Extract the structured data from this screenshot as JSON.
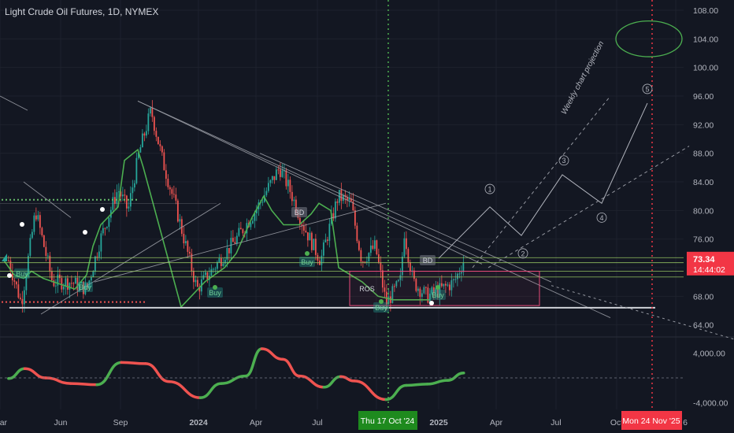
{
  "header": {
    "title": "Light Crude Oil Futures, 1D, NYMEX"
  },
  "colors": {
    "background": "#131722",
    "grid": "#1e222d",
    "text": "#b2b5be",
    "up": "#26a69a",
    "down": "#ef5350",
    "current_price_bg": "#f23645",
    "highlight_date_bg": "#1e8a1e",
    "trendline": "#a0a3ab",
    "support_line": "#cfd2d8",
    "level_lines": "#9ccc65",
    "box": "#e84a7a"
  },
  "chart_data": [
    {
      "type": "candlestick",
      "title": "Light Crude Oil Futures, 1D, NYMEX",
      "price_axis": {
        "ticks": [
          108,
          104,
          100,
          96,
          92,
          88,
          84,
          80,
          76,
          72,
          68,
          64
        ],
        "tick_labels": [
          "108.00",
          "104.00",
          "100.00",
          "96.00",
          "92.00",
          "88.00",
          "84.00",
          "80.00",
          "76.00",
          "72.00",
          "68.00",
          "64.00"
        ],
        "range": [
          61.5,
          110
        ]
      },
      "time_axis": {
        "labels": [
          "Mar",
          "Jun",
          "Sep",
          "2024",
          "Apr",
          "Jul",
          "Oct",
          "2025",
          "Apr",
          "Jul",
          "Oct",
          "6"
        ],
        "highlight_labels": [
          "Thu 17 Oct '24",
          "Mon 24 Nov '25"
        ],
        "grid_on": true
      },
      "current_price": {
        "value": 73.34,
        "label": "73.34",
        "countdown": "14:44:02"
      },
      "price_path": [
        {
          "t": "2023-03-01",
          "p": 73
        },
        {
          "t": "2023-03-20",
          "p": 67
        },
        {
          "t": "2023-04-10",
          "p": 80
        },
        {
          "t": "2023-05-05",
          "p": 70
        },
        {
          "t": "2023-06-01",
          "p": 70
        },
        {
          "t": "2023-06-25",
          "p": 69
        },
        {
          "t": "2023-07-15",
          "p": 76
        },
        {
          "t": "2023-08-10",
          "p": 83
        },
        {
          "t": "2023-08-25",
          "p": 80
        },
        {
          "t": "2023-09-10",
          "p": 88
        },
        {
          "t": "2023-09-28",
          "p": 94
        },
        {
          "t": "2023-10-15",
          "p": 87
        },
        {
          "t": "2023-11-05",
          "p": 80
        },
        {
          "t": "2023-12-05",
          "p": 69
        },
        {
          "t": "2023-12-30",
          "p": 72
        },
        {
          "t": "2024-02-01",
          "p": 76
        },
        {
          "t": "2024-03-01",
          "p": 80
        },
        {
          "t": "2024-04-05",
          "p": 86
        },
        {
          "t": "2024-04-20",
          "p": 83
        },
        {
          "t": "2024-05-10",
          "p": 78
        },
        {
          "t": "2024-06-05",
          "p": 73
        },
        {
          "t": "2024-07-01",
          "p": 82
        },
        {
          "t": "2024-07-20",
          "p": 81
        },
        {
          "t": "2024-08-05",
          "p": 73
        },
        {
          "t": "2024-08-25",
          "p": 75
        },
        {
          "t": "2024-09-10",
          "p": 67
        },
        {
          "t": "2024-10-01",
          "p": 70
        },
        {
          "t": "2024-10-07",
          "p": 77
        },
        {
          "t": "2024-10-20",
          "p": 70
        },
        {
          "t": "2024-11-10",
          "p": 68
        },
        {
          "t": "2024-12-01",
          "p": 69
        },
        {
          "t": "2024-12-20",
          "p": 70
        },
        {
          "t": "2025-01-03",
          "p": 73
        }
      ],
      "horizontal_levels": [
        66.4,
        70.7,
        71.5,
        72.7,
        73.4
      ],
      "elliott_projection": {
        "label": "Weekly chart projection",
        "waves": [
          {
            "label": "1",
            "p": 80.5
          },
          {
            "label": "2",
            "p": 76.5
          },
          {
            "label": "3",
            "p": 85
          },
          {
            "label": "4",
            "p": 81
          },
          {
            "label": "5",
            "p": 95
          }
        ],
        "target_zone": [
          101.5,
          106.5
        ]
      },
      "signals": [
        {
          "label": "Buy"
        },
        {
          "label": "Buy"
        },
        {
          "label": "Buy"
        },
        {
          "label": "Buy"
        },
        {
          "label": "Buy"
        },
        {
          "label": "Buy"
        },
        {
          "label": "BD"
        },
        {
          "label": "BD"
        },
        {
          "label": "ROS"
        }
      ]
    },
    {
      "type": "line",
      "title": "",
      "axis": {
        "ticks": [
          4000,
          -4000
        ],
        "tick_labels": [
          "4,000.00",
          "-4,000.00"
        ]
      },
      "series_path": [
        {
          "t": "2023-03-01",
          "v": -100
        },
        {
          "t": "2023-03-25",
          "v": 1500
        },
        {
          "t": "2023-04-25",
          "v": 0
        },
        {
          "t": "2023-06-01",
          "v": -900
        },
        {
          "t": "2023-07-10",
          "v": -1100
        },
        {
          "t": "2023-08-15",
          "v": 2500
        },
        {
          "t": "2023-09-20",
          "v": 2300
        },
        {
          "t": "2023-10-25",
          "v": -600
        },
        {
          "t": "2023-12-10",
          "v": -3200
        },
        {
          "t": "2024-01-10",
          "v": -900
        },
        {
          "t": "2024-02-15",
          "v": 300
        },
        {
          "t": "2024-03-10",
          "v": 4700
        },
        {
          "t": "2024-04-10",
          "v": 3000
        },
        {
          "t": "2024-05-05",
          "v": 300
        },
        {
          "t": "2024-06-10",
          "v": -1500
        },
        {
          "t": "2024-07-05",
          "v": 200
        },
        {
          "t": "2024-07-25",
          "v": -500
        },
        {
          "t": "2024-09-10",
          "v": -3500
        },
        {
          "t": "2024-10-10",
          "v": -1200
        },
        {
          "t": "2024-11-10",
          "v": -1000
        },
        {
          "t": "2024-12-10",
          "v": -400
        },
        {
          "t": "2025-01-03",
          "v": 800
        }
      ]
    }
  ]
}
